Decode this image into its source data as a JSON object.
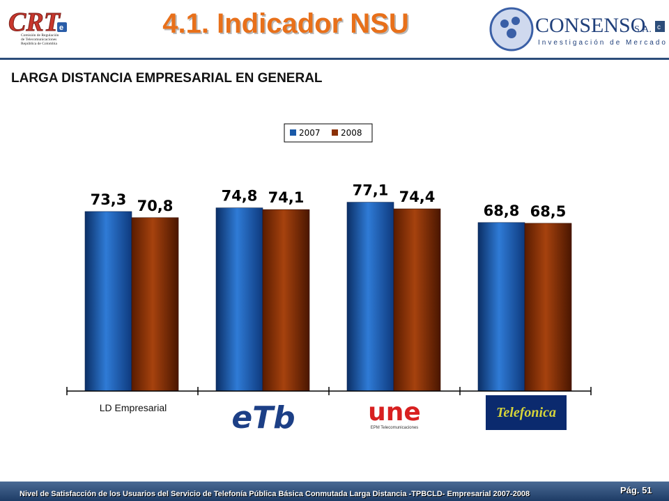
{
  "header": {
    "title": "4.1.  Indicador NSU",
    "crt_logo_text": "CRT",
    "crt_caption": [
      "Comisión de Regulación",
      "de Telecomunicaciones",
      "República de Colombia"
    ],
    "consenso_name": "CONSENSO",
    "consenso_suffix": "S.A.",
    "consenso_tagline": "Investigación de Mercados"
  },
  "subtitle": "LARGA DISTANCIA EMPRESARIAL EN GENERAL",
  "chart_data": {
    "type": "bar",
    "categories": [
      "LD Empresarial",
      "ETB",
      "UNE",
      "Telefónica"
    ],
    "series": [
      {
        "name": "2007",
        "values": [
          73.3,
          74.8,
          77.1,
          68.8
        ],
        "labels": [
          "73,3",
          "74,8",
          "77,1",
          "68,8"
        ],
        "color": "#1a5aa8"
      },
      {
        "name": "2008",
        "values": [
          70.8,
          74.1,
          74.4,
          68.5
        ],
        "labels": [
          "70,8",
          "74,1",
          "74,4",
          "68,5"
        ],
        "color": "#8b3005"
      }
    ],
    "legend_position": "top-center",
    "grid": false
  },
  "category_logos": {
    "etb": "eTb",
    "une": "une",
    "une_sub": "EPM Telecomunicaciones",
    "telefonica": "Telefonica"
  },
  "footer": {
    "text": "Nivel de Satisfacción de los Usuarios del Servicio de Telefonía Pública Básica Conmutada Larga Distancia -TPBCLD- Empresarial 2007-2008",
    "page": "Pág. 51"
  }
}
